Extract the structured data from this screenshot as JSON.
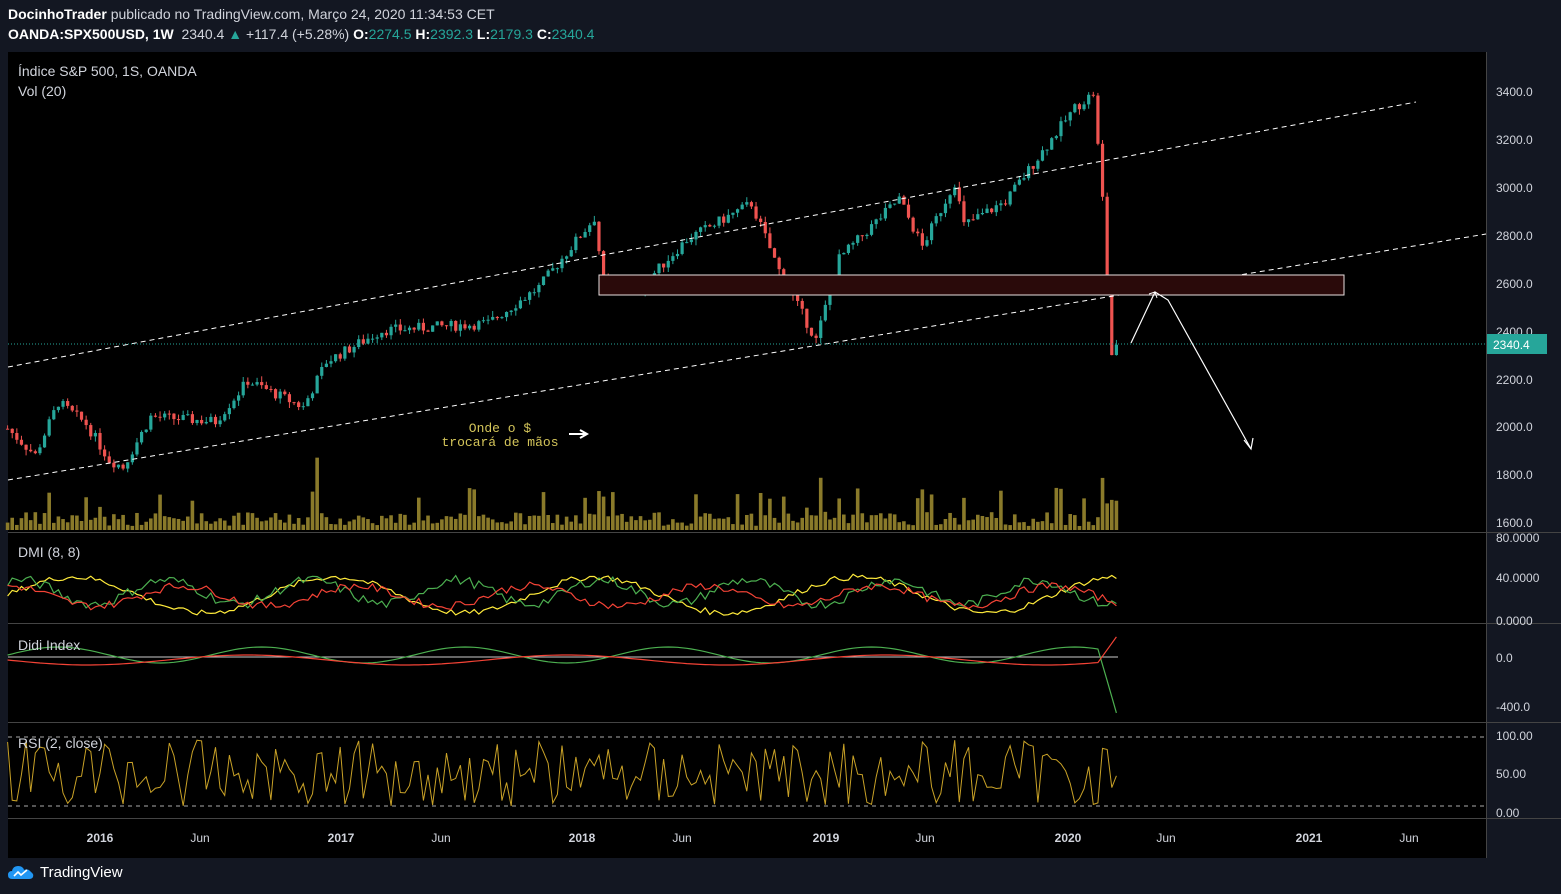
{
  "header": {
    "author": "DocinhoTrader",
    "published": "publicado no TradingView.com, Março 24, 2020 11:34:53 CET",
    "symbol": "OANDA:SPX500USD, 1W",
    "last": "2340.4",
    "change": "+117.4 (+5.28%)",
    "o_label": "O:",
    "o_value": "2274.5",
    "h_label": "H:",
    "h_value": "2392.3",
    "l_label": "L:",
    "l_value": "2179.3",
    "c_label": "C:",
    "c_value": "2340.4"
  },
  "panes": {
    "main_title": "Índice S&P 500, 1S, OANDA",
    "volume_title": "Vol (20)",
    "dmi_title": "DMI (8, 8)",
    "didi_title": "Didi Index",
    "rsi_title": "RSI (2, close)"
  },
  "annotation": {
    "line1": "Onde o $",
    "line2": "trocará de mãos"
  },
  "price_axis": [
    "3400.0",
    "3200.0",
    "3000.0",
    "2800.0",
    "2600.0",
    "2400.0",
    "2200.0",
    "2000.0",
    "1800.0",
    "1600.0"
  ],
  "price_badge": "2340.4",
  "dmi_axis": [
    "80.0000",
    "40.0000",
    "0.0000"
  ],
  "didi_axis": [
    "0.0",
    "-400.0"
  ],
  "rsi_axis": [
    "100.00",
    "50.00",
    "0.00"
  ],
  "time_axis": [
    "2016",
    "Jun",
    "2017",
    "Jun",
    "2018",
    "Jun",
    "2019",
    "Jun",
    "2020",
    "Jun",
    "2021",
    "Jun"
  ],
  "footer": {
    "brand": "TradingView"
  },
  "colors": {
    "bg": "#131722",
    "up": "#26a69a",
    "down": "#ef5350",
    "volume": "#8a7a2a",
    "dmi_plus": "#4caf50",
    "dmi_minus": "#f44336",
    "adx": "#ffeb3b",
    "rsi": "#c9a227",
    "zone": "#2a0a0a"
  },
  "chart_data": {
    "type": "candlestick",
    "symbol": "OANDA:SPX500USD",
    "interval": "1W",
    "y_range": [
      1550,
      3500
    ],
    "x_range": [
      "2015-08",
      "2021-08"
    ],
    "last_close": 2340.4,
    "anchors": [
      [
        "2015-08-17",
        1990
      ],
      [
        "2015-09-28",
        1880
      ],
      [
        "2015-11-02",
        2100
      ],
      [
        "2015-12-14",
        2010
      ],
      [
        "2016-01-18",
        1860
      ],
      [
        "2016-02-08",
        1830
      ],
      [
        "2016-03-21",
        2040
      ],
      [
        "2016-06-27",
        2020
      ],
      [
        "2016-08-15",
        2190
      ],
      [
        "2016-11-07",
        2080
      ],
      [
        "2016-12-12",
        2270
      ],
      [
        "2017-03-06",
        2400
      ],
      [
        "2017-08-14",
        2430
      ],
      [
        "2017-10-30",
        2580
      ],
      [
        "2018-01-22",
        2870
      ],
      [
        "2018-02-05",
        2600
      ],
      [
        "2018-03-19",
        2600
      ],
      [
        "2018-04-02",
        2580
      ],
      [
        "2018-06-11",
        2780
      ],
      [
        "2018-09-17",
        2930
      ],
      [
        "2018-10-29",
        2650
      ],
      [
        "2018-12-24",
        2360
      ],
      [
        "2019-01-28",
        2700
      ],
      [
        "2019-04-29",
        2950
      ],
      [
        "2019-06-03",
        2750
      ],
      [
        "2019-07-22",
        3020
      ],
      [
        "2019-08-05",
        2840
      ],
      [
        "2019-10-07",
        2940
      ],
      [
        "2020-01-20",
        3330
      ],
      [
        "2020-02-17",
        3390
      ],
      [
        "2020-03-02",
        2950
      ],
      [
        "2020-03-16",
        2300
      ],
      [
        "2020-03-23",
        2340
      ]
    ]
  }
}
